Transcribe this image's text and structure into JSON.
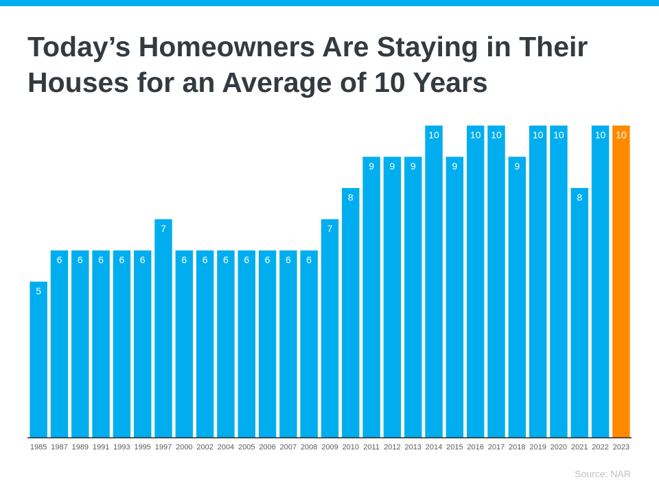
{
  "chart_data": {
    "type": "bar",
    "title": "Today’s Homeowners Are Staying in Their Houses for an Average of 10 Years",
    "source": "Source: NAR",
    "categories": [
      "1985",
      "1987",
      "1989",
      "1991",
      "1993",
      "1995",
      "1997",
      "2000",
      "2002",
      "2004",
      "2005",
      "2006",
      "2007",
      "2008",
      "2009",
      "2010",
      "2011",
      "2012",
      "2013",
      "2014",
      "2015",
      "2016",
      "2017",
      "2018",
      "2019",
      "2020",
      "2021",
      "2022",
      "2023"
    ],
    "values": [
      5,
      6,
      6,
      6,
      6,
      6,
      7,
      6,
      6,
      6,
      6,
      6,
      6,
      6,
      7,
      8,
      9,
      9,
      9,
      10,
      9,
      10,
      10,
      9,
      10,
      10,
      8,
      10,
      10
    ],
    "colors": [
      "#00aeef",
      "#00aeef",
      "#00aeef",
      "#00aeef",
      "#00aeef",
      "#00aeef",
      "#00aeef",
      "#00aeef",
      "#00aeef",
      "#00aeef",
      "#00aeef",
      "#00aeef",
      "#00aeef",
      "#00aeef",
      "#00aeef",
      "#00aeef",
      "#00aeef",
      "#00aeef",
      "#00aeef",
      "#00aeef",
      "#00aeef",
      "#00aeef",
      "#00aeef",
      "#00aeef",
      "#00aeef",
      "#00aeef",
      "#00aeef",
      "#00aeef",
      "#ff8a00"
    ],
    "ylim": [
      0,
      10
    ]
  }
}
